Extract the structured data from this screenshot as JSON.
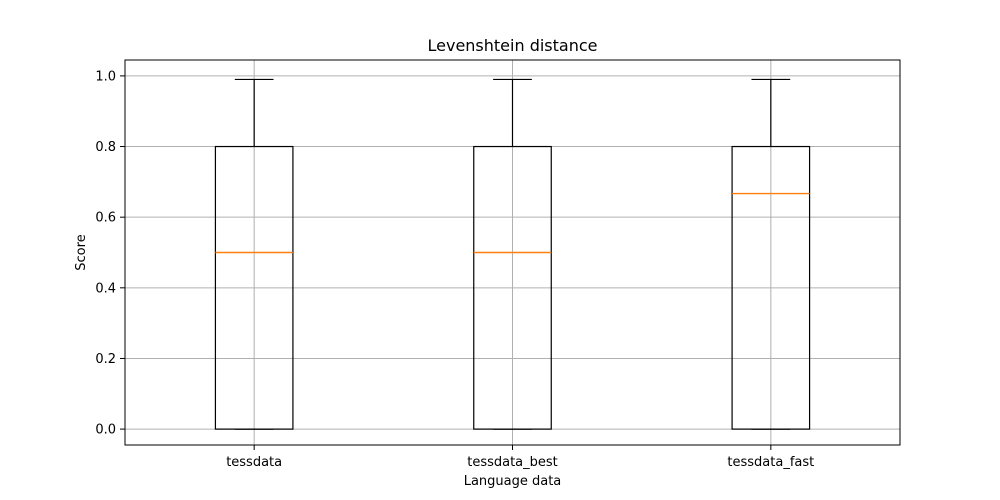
{
  "chart_data": {
    "type": "boxplot",
    "title": "Levenshtein distance",
    "xlabel": "Language data",
    "ylabel": "Score",
    "ylim": [
      -0.045,
      1.045
    ],
    "yticks": [
      0.0,
      0.2,
      0.4,
      0.6,
      0.8,
      1.0
    ],
    "ytick_labels": [
      "0.0",
      "0.2",
      "0.4",
      "0.6",
      "0.8",
      "1.0"
    ],
    "grid": true,
    "categories": [
      "tessdata",
      "tessdata_best",
      "tessdata_fast"
    ],
    "boxes": [
      {
        "name": "tessdata",
        "whisker_low": 0.0,
        "q1": 0.0,
        "median": 0.5,
        "q3": 0.8,
        "whisker_high": 0.99
      },
      {
        "name": "tessdata_best",
        "whisker_low": 0.0,
        "q1": 0.0,
        "median": 0.5,
        "q3": 0.8,
        "whisker_high": 0.99
      },
      {
        "name": "tessdata_fast",
        "whisker_low": 0.0,
        "q1": 0.0,
        "median": 0.667,
        "q3": 0.8,
        "whisker_high": 0.99
      }
    ],
    "colors": {
      "box": "#000000",
      "median": "#ff7f0e",
      "grid": "#b0b0b0"
    }
  }
}
